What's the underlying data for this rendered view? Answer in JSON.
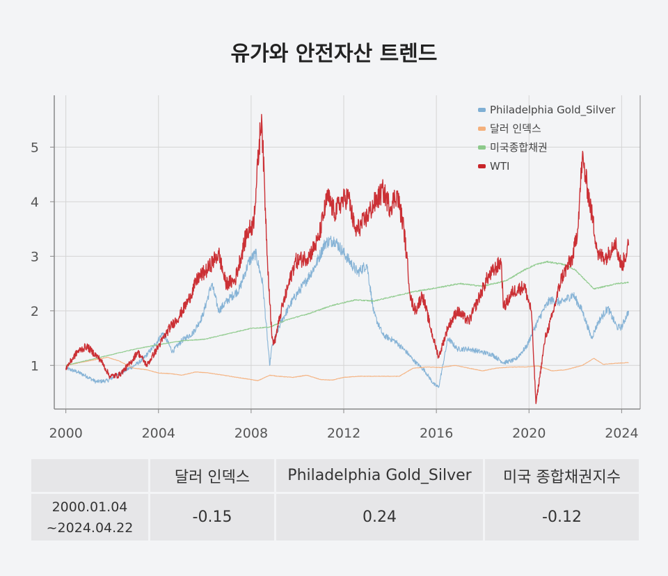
{
  "title": "유가와 안전자산 트렌드",
  "colors": {
    "gold_silver": "#7fafd4",
    "dollar": "#f4b07c",
    "bond": "#8cc98a",
    "wti": "#c8252a",
    "grid": "#d4d4d4",
    "axis": "#888888"
  },
  "chart_data": {
    "type": "line",
    "title": "유가와 안전자산 트렌드",
    "xlabel": "",
    "ylabel": "",
    "xlim": [
      1999.5,
      2024.8
    ],
    "ylim": [
      0.2,
      5.95
    ],
    "x_ticks": [
      2000,
      2004,
      2008,
      2012,
      2016,
      2020,
      2024
    ],
    "y_ticks": [
      1,
      2,
      3,
      4,
      5
    ],
    "grid": true,
    "legend_position": "top-right",
    "series": [
      {
        "name": "Philadelphia Gold_Silver",
        "color": "#7fafd4",
        "x": [
          2000.0,
          2000.5,
          2000.9,
          2001.3,
          2001.8,
          2002.3,
          2002.9,
          2003.3,
          2003.8,
          2004.2,
          2004.6,
          2005.0,
          2005.5,
          2005.9,
          2006.3,
          2006.6,
          2007.0,
          2007.5,
          2007.9,
          2008.2,
          2008.5,
          2008.8,
          2008.9,
          2009.3,
          2009.8,
          2010.3,
          2010.8,
          2011.2,
          2011.6,
          2012.1,
          2012.6,
          2013.0,
          2013.3,
          2013.7,
          2014.2,
          2014.7,
          2015.0,
          2015.5,
          2015.9,
          2016.1,
          2016.5,
          2016.9,
          2017.4,
          2017.9,
          2018.4,
          2018.9,
          2019.4,
          2019.9,
          2020.2,
          2020.6,
          2020.9,
          2021.4,
          2021.9,
          2022.3,
          2022.7,
          2023.0,
          2023.4,
          2023.8,
          2024.0,
          2024.3
        ],
        "values": [
          0.95,
          0.88,
          0.8,
          0.7,
          0.72,
          0.85,
          0.98,
          1.1,
          1.35,
          1.6,
          1.25,
          1.45,
          1.6,
          1.9,
          2.5,
          2.0,
          2.2,
          2.4,
          2.9,
          3.05,
          2.5,
          1.0,
          1.35,
          1.8,
          2.2,
          2.5,
          2.85,
          3.25,
          3.3,
          3.0,
          2.7,
          2.85,
          1.95,
          1.55,
          1.45,
          1.25,
          1.1,
          0.9,
          0.65,
          0.6,
          1.5,
          1.3,
          1.3,
          1.25,
          1.2,
          1.05,
          1.1,
          1.35,
          1.65,
          2.0,
          2.2,
          2.15,
          2.3,
          2.0,
          1.5,
          1.8,
          2.05,
          1.7,
          1.7,
          2.0
        ]
      },
      {
        "name": "달러 인덱스",
        "color": "#f4b07c",
        "x": [
          2000.0,
          2000.6,
          2001.2,
          2001.8,
          2002.3,
          2002.9,
          2003.5,
          2004.0,
          2004.5,
          2005.0,
          2005.6,
          2006.2,
          2006.8,
          2007.4,
          2008.0,
          2008.3,
          2008.8,
          2009.2,
          2009.8,
          2010.4,
          2011.0,
          2011.5,
          2012.0,
          2012.6,
          2013.2,
          2013.8,
          2014.4,
          2015.0,
          2015.6,
          2016.2,
          2016.8,
          2017.4,
          2018.0,
          2018.6,
          2019.2,
          2019.8,
          2020.4,
          2021.0,
          2021.6,
          2022.3,
          2022.8,
          2023.2,
          2023.8,
          2024.3
        ],
        "values": [
          1.0,
          1.05,
          1.1,
          1.15,
          1.08,
          0.95,
          0.92,
          0.86,
          0.85,
          0.82,
          0.88,
          0.86,
          0.82,
          0.78,
          0.74,
          0.72,
          0.82,
          0.8,
          0.78,
          0.82,
          0.74,
          0.73,
          0.78,
          0.8,
          0.8,
          0.8,
          0.8,
          0.95,
          0.97,
          0.96,
          1.0,
          0.95,
          0.9,
          0.95,
          0.97,
          0.97,
          0.99,
          0.9,
          0.92,
          1.0,
          1.13,
          1.02,
          1.04,
          1.05
        ]
      },
      {
        "name": "미국종합채권",
        "color": "#8cc98a",
        "x": [
          2000.0,
          2001.0,
          2002.0,
          2003.0,
          2004.0,
          2005.0,
          2006.0,
          2007.0,
          2008.0,
          2008.8,
          2009.5,
          2010.5,
          2011.5,
          2012.5,
          2013.3,
          2014.0,
          2015.0,
          2016.0,
          2017.0,
          2018.0,
          2019.0,
          2019.8,
          2020.3,
          2020.8,
          2021.5,
          2022.0,
          2022.8,
          2023.3,
          2023.8,
          2024.3
        ],
        "values": [
          1.0,
          1.1,
          1.2,
          1.3,
          1.38,
          1.45,
          1.48,
          1.58,
          1.68,
          1.7,
          1.83,
          1.95,
          2.1,
          2.2,
          2.18,
          2.25,
          2.35,
          2.42,
          2.5,
          2.45,
          2.55,
          2.75,
          2.85,
          2.9,
          2.85,
          2.75,
          2.4,
          2.45,
          2.5,
          2.52
        ]
      },
      {
        "name": "WTI",
        "color": "#c8252a",
        "x": [
          2000.0,
          2000.5,
          2000.9,
          2001.5,
          2001.9,
          2002.3,
          2002.8,
          2003.1,
          2003.5,
          2004.0,
          2004.5,
          2004.9,
          2005.3,
          2005.7,
          2006.1,
          2006.6,
          2006.9,
          2007.3,
          2007.8,
          2008.1,
          2008.45,
          2008.7,
          2008.9,
          2009.0,
          2009.3,
          2009.9,
          2010.5,
          2010.9,
          2011.3,
          2011.6,
          2011.9,
          2012.2,
          2012.5,
          2012.9,
          2013.3,
          2013.7,
          2014.0,
          2014.3,
          2014.6,
          2014.9,
          2015.1,
          2015.4,
          2015.8,
          2016.1,
          2016.5,
          2016.9,
          2017.4,
          2017.8,
          2018.2,
          2018.8,
          2018.9,
          2019.3,
          2019.8,
          2020.1,
          2020.3,
          2020.7,
          2021.0,
          2021.4,
          2021.9,
          2022.1,
          2022.3,
          2022.7,
          2023.0,
          2023.4,
          2023.7,
          2024.0,
          2024.3
        ],
        "values": [
          0.95,
          1.25,
          1.35,
          1.1,
          0.8,
          0.82,
          1.05,
          1.25,
          1.0,
          1.35,
          1.7,
          1.9,
          2.2,
          2.6,
          2.75,
          3.05,
          2.5,
          2.55,
          3.4,
          3.6,
          5.6,
          3.0,
          1.5,
          1.4,
          2.0,
          2.9,
          3.0,
          3.3,
          4.1,
          3.8,
          4.0,
          4.1,
          3.45,
          3.65,
          3.95,
          4.2,
          3.9,
          4.15,
          3.5,
          2.2,
          2.0,
          2.3,
          1.6,
          1.15,
          1.7,
          2.0,
          1.8,
          2.2,
          2.6,
          2.9,
          2.05,
          2.35,
          2.45,
          2.0,
          0.3,
          1.5,
          1.9,
          2.6,
          3.0,
          3.5,
          4.8,
          3.8,
          3.0,
          3.0,
          3.3,
          2.8,
          3.2
        ]
      }
    ]
  },
  "table": {
    "headers": [
      "",
      "달러 인덱스",
      "Philadelphia Gold_Silver",
      "미국 종합채권지수"
    ],
    "rows": [
      {
        "period_line1": "2000.01.04",
        "period_line2": "~2024.04.22",
        "values": [
          "-0.15",
          "0.24",
          "-0.12"
        ]
      }
    ]
  }
}
